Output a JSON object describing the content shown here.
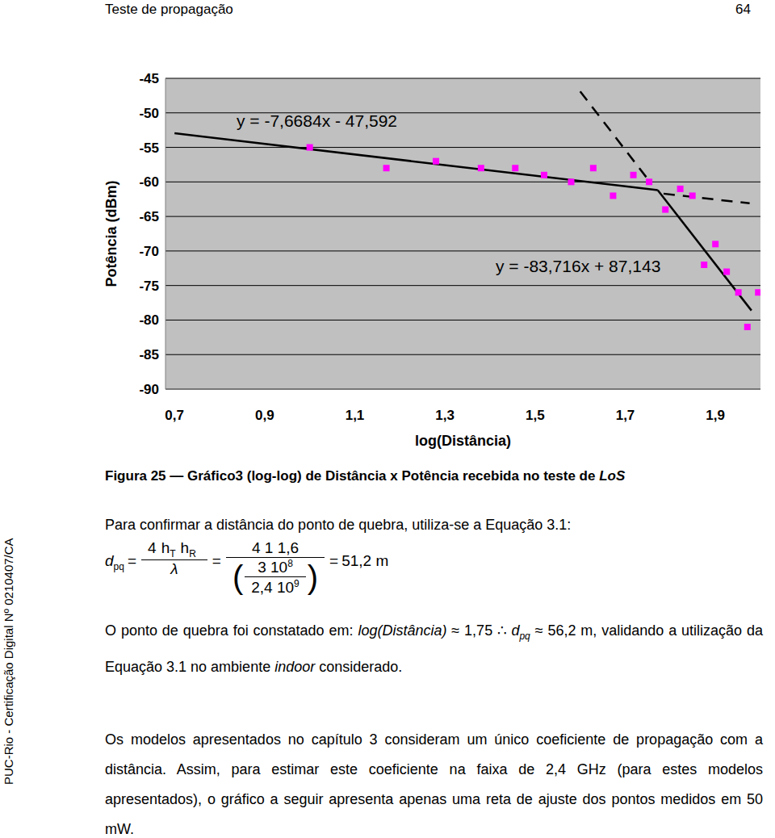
{
  "header": {
    "left": "Teste de propagação",
    "right": "64"
  },
  "side_note": "PUC-Rio - Certificação Digital Nº 0210407/CA",
  "chart_data": {
    "type": "scatter",
    "x_label": "log(Distância)",
    "y_label": "Potência (dBm)",
    "xlim": [
      0.68,
      2.0
    ],
    "xticks": [
      {
        "value": 0.7,
        "label": "0,7"
      },
      {
        "value": 0.9,
        "label": "0,9"
      },
      {
        "value": 1.1,
        "label": "1,1"
      },
      {
        "value": 1.3,
        "label": "1,3"
      },
      {
        "value": 1.5,
        "label": "1,5"
      },
      {
        "value": 1.7,
        "label": "1,7"
      },
      {
        "value": 1.9,
        "label": "1,9"
      }
    ],
    "ylim": [
      -90,
      -45
    ],
    "yticks": [
      -90,
      -85,
      -80,
      -75,
      -70,
      -65,
      -60,
      -55,
      -50,
      -45
    ],
    "grid": true,
    "annotations": [
      "y = -7,6684x - 47,592",
      "y = -83,716x + 87,143"
    ],
    "series": [
      {
        "type": "scatter",
        "color": "#ff00ff",
        "marker": "square",
        "x": [
          1.0,
          1.17,
          1.28,
          1.38,
          1.456,
          1.52,
          1.58,
          1.629,
          1.673,
          1.718,
          1.753,
          1.789,
          1.822,
          1.849,
          1.875,
          1.9,
          1.925,
          1.951,
          1.971,
          1.995
        ],
        "values": [
          -55,
          -58,
          -57,
          -58,
          -58,
          -59,
          -60,
          -58,
          -62,
          -59,
          -60,
          -64,
          -61,
          -62,
          -72,
          -69,
          -73,
          -76,
          -81,
          -76
        ]
      },
      {
        "type": "line",
        "color": "#000000",
        "line_style": "solid",
        "x": [
          0.7,
          1.772
        ],
        "values": [
          -52.96,
          -61.18
        ]
      },
      {
        "type": "line",
        "color": "#000000",
        "line_style": "solid",
        "x": [
          1.772,
          1.98
        ],
        "values": [
          -61.18,
          -78.62
        ]
      },
      {
        "type": "line",
        "color": "#000000",
        "line_style": "dashed",
        "x": [
          1.6,
          1.75
        ],
        "values": [
          -46.9,
          -59.6
        ]
      },
      {
        "type": "line",
        "color": "#000000",
        "line_style": "dashed",
        "x": [
          1.785,
          1.976
        ],
        "values": [
          -61.7,
          -63.1
        ]
      }
    ]
  },
  "caption": [
    "Figura 25 — Gráfico3 (log-log) de Distância x Potência recebida no teste de ",
    "LoS"
  ],
  "paragraph1": "Para confirmar a distância do ponto de quebra, utiliza-se a Equação 3.1:",
  "equation": {
    "lhs": "d",
    "lhs_sub": "pq",
    "num1": [
      {
        "t": "4"
      },
      {
        "t": "h",
        "sub": "T"
      },
      {
        "t": "h",
        "sub": "R"
      }
    ],
    "den1": "λ",
    "num2": "4 1 1,6",
    "inner_num": "3 10",
    "inner_num_sup": "8",
    "inner_den": "2,4 10",
    "inner_den_sup": "9",
    "result": "51,2",
    "unit": "m"
  },
  "paragraph2": [
    {
      "text": "O ponto de quebra foi constatado em: ",
      "italic": false
    },
    {
      "text": "log(Distância)",
      "italic": true
    },
    {
      "text": " ≈ 1,75 ∴ ",
      "italic": false
    },
    {
      "text": "d",
      "italic": true
    },
    {
      "text": "pq",
      "italic": true,
      "sub": true
    },
    {
      "text": " ≈ 56,2 m, validando a utilização da Equação 3.1 no ambiente ",
      "italic": false
    },
    {
      "text": "indoor",
      "italic": true
    },
    {
      "text": " considerado.",
      "italic": false
    }
  ],
  "paragraph3": "Os modelos apresentados no capítulo 3 consideram um único coeficiente de propagação com a distância. Assim, para estimar este coeficiente na faixa de 2,4 GHz (para estes modelos apresentados), o gráfico a seguir apresenta apenas uma reta de ajuste dos pontos medidos em 50 mW."
}
